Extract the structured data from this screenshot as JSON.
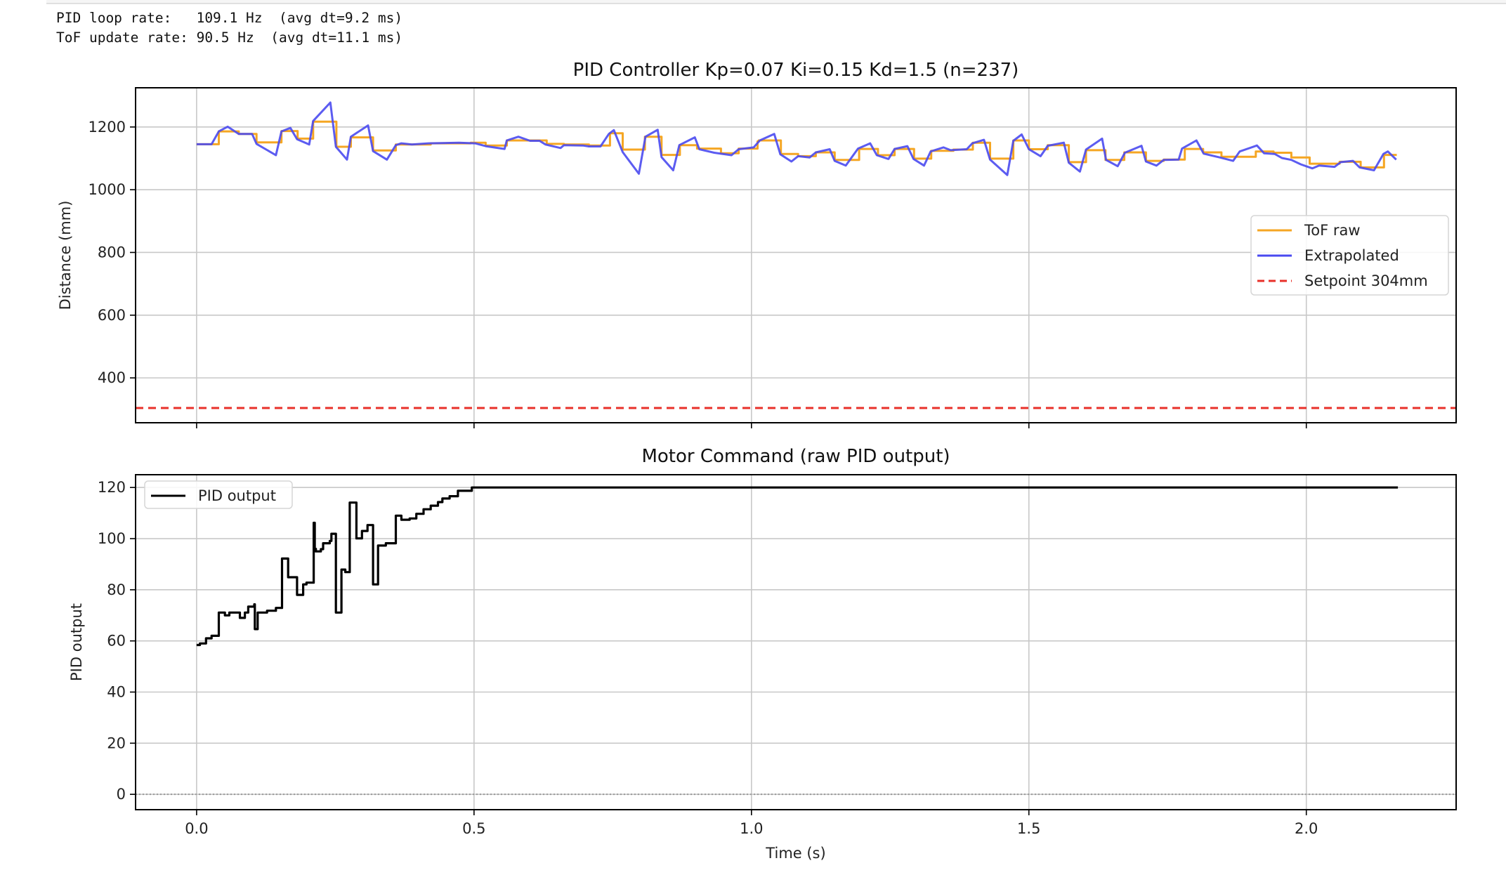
{
  "stdout": {
    "line1": "PID loop rate:   109.1 Hz  (avg dt=9.2 ms)",
    "line2": "ToF update rate: 90.5 Hz  (avg dt=11.1 ms)"
  },
  "colors": {
    "tof_raw": "#f5a623",
    "extrapolated": "#4a4af0",
    "setpoint": "#e8302a",
    "pid_output": "#000000",
    "grid": "#c8c8c8",
    "zero_line": "#999999"
  },
  "chart_data": [
    {
      "type": "line",
      "title": "PID Controller  Kp=0.07  Ki=0.15  Kd=1.5  (n=237)",
      "xlabel": "",
      "ylabel": "Distance (mm)",
      "xlim": [
        -0.11,
        2.27
      ],
      "ylim": [
        257,
        1325
      ],
      "xticks": [
        0.0,
        0.5,
        1.0,
        1.5,
        2.0
      ],
      "xtick_labels": [
        "",
        "",
        "",
        "",
        ""
      ],
      "yticks": [
        400,
        600,
        800,
        1000,
        1200
      ],
      "ytick_labels": [
        "400",
        "600",
        "800",
        "1000",
        "1200"
      ],
      "grid": true,
      "legend_position": "center right",
      "series": [
        {
          "name": "ToF raw",
          "style": "steps-post",
          "color": "#f5a623",
          "x": [
            0.0,
            0.04,
            0.076,
            0.108,
            0.153,
            0.182,
            0.21,
            0.252,
            0.278,
            0.318,
            0.359,
            0.422,
            0.494,
            0.521,
            0.559,
            0.631,
            0.662,
            0.707,
            0.745,
            0.768,
            0.808,
            0.838,
            0.871,
            0.902,
            0.945,
            0.977,
            1.011,
            1.013,
            1.053,
            1.084,
            1.116,
            1.15,
            1.194,
            1.228,
            1.258,
            1.293,
            1.324,
            1.364,
            1.399,
            1.43,
            1.472,
            1.5,
            1.534,
            1.572,
            1.603,
            1.638,
            1.672,
            1.711,
            1.743,
            1.781,
            1.814,
            1.847,
            1.909,
            1.941,
            1.973,
            2.006,
            2.06,
            2.098,
            2.14,
            2.163
          ],
          "y": [
            1145,
            1186,
            1178,
            1151,
            1187,
            1163,
            1217,
            1137,
            1167,
            1125,
            1144,
            1148,
            1150,
            1141,
            1157,
            1146,
            1144,
            1141,
            1180,
            1128,
            1169,
            1111,
            1142,
            1131,
            1116,
            1131,
            1154,
            1157,
            1114,
            1107,
            1119,
            1095,
            1130,
            1110,
            1130,
            1099,
            1124,
            1128,
            1150,
            1099,
            1157,
            1129,
            1142,
            1088,
            1126,
            1095,
            1119,
            1092,
            1096,
            1130,
            1119,
            1105,
            1122,
            1118,
            1103,
            1083,
            1089,
            1071,
            1111,
            1111
          ]
        },
        {
          "name": "Extrapolated",
          "style": "line",
          "color": "#4a4af0",
          "x": [
            0.0,
            0.027,
            0.04,
            0.056,
            0.076,
            0.1,
            0.108,
            0.143,
            0.153,
            0.169,
            0.181,
            0.203,
            0.21,
            0.241,
            0.251,
            0.271,
            0.278,
            0.309,
            0.318,
            0.343,
            0.359,
            0.369,
            0.388,
            0.418,
            0.473,
            0.502,
            0.521,
            0.555,
            0.559,
            0.58,
            0.601,
            0.618,
            0.629,
            0.656,
            0.662,
            0.696,
            0.707,
            0.728,
            0.743,
            0.752,
            0.768,
            0.797,
            0.809,
            0.831,
            0.838,
            0.859,
            0.87,
            0.898,
            0.906,
            0.933,
            0.964,
            0.977,
            1.004,
            1.015,
            1.041,
            1.052,
            1.072,
            1.084,
            1.105,
            1.116,
            1.141,
            1.15,
            1.17,
            1.192,
            1.214,
            1.226,
            1.247,
            1.258,
            1.281,
            1.292,
            1.311,
            1.323,
            1.346,
            1.359,
            1.388,
            1.398,
            1.419,
            1.43,
            1.461,
            1.472,
            1.487,
            1.5,
            1.521,
            1.534,
            1.563,
            1.572,
            1.592,
            1.603,
            1.632,
            1.639,
            1.66,
            1.673,
            1.703,
            1.711,
            1.73,
            1.743,
            1.77,
            1.776,
            1.802,
            1.815,
            1.844,
            1.868,
            1.88,
            1.911,
            1.924,
            1.943,
            1.956,
            1.973,
            1.99,
            2.011,
            2.023,
            2.051,
            2.062,
            2.084,
            2.096,
            2.122,
            2.139,
            2.147,
            2.162
          ],
          "y": [
            1145,
            1145,
            1186,
            1201,
            1178,
            1178,
            1146,
            1110,
            1186,
            1197,
            1161,
            1144,
            1219,
            1278,
            1137,
            1096,
            1169,
            1205,
            1123,
            1096,
            1142,
            1148,
            1144,
            1148,
            1150,
            1148,
            1139,
            1130,
            1157,
            1169,
            1156,
            1156,
            1144,
            1133,
            1142,
            1141,
            1138,
            1138,
            1178,
            1190,
            1120,
            1051,
            1169,
            1191,
            1104,
            1062,
            1142,
            1167,
            1129,
            1118,
            1110,
            1129,
            1135,
            1157,
            1178,
            1113,
            1090,
            1107,
            1103,
            1119,
            1129,
            1092,
            1077,
            1131,
            1148,
            1110,
            1098,
            1130,
            1139,
            1098,
            1077,
            1122,
            1135,
            1126,
            1129,
            1148,
            1159,
            1096,
            1047,
            1156,
            1176,
            1129,
            1107,
            1140,
            1150,
            1086,
            1058,
            1128,
            1163,
            1095,
            1075,
            1118,
            1140,
            1090,
            1077,
            1095,
            1096,
            1131,
            1157,
            1115,
            1103,
            1092,
            1122,
            1141,
            1116,
            1114,
            1101,
            1095,
            1081,
            1068,
            1077,
            1073,
            1088,
            1092,
            1071,
            1062,
            1114,
            1122,
            1096
          ]
        },
        {
          "name": "Setpoint 304mm",
          "style": "hline-dashed",
          "color": "#e8302a",
          "y": 304
        }
      ]
    },
    {
      "type": "line",
      "title": "Motor Command (raw PID output)",
      "xlabel": "Time (s)",
      "ylabel": "PID output",
      "xlim": [
        -0.11,
        2.27
      ],
      "ylim": [
        -6,
        125
      ],
      "xticks": [
        0.0,
        0.5,
        1.0,
        1.5,
        2.0
      ],
      "xtick_labels": [
        "0.0",
        "0.5",
        "1.0",
        "1.5",
        "2.0"
      ],
      "yticks": [
        0,
        20,
        40,
        60,
        80,
        100,
        120
      ],
      "ytick_labels": [
        "0",
        "20",
        "40",
        "60",
        "80",
        "100",
        "120"
      ],
      "grid": true,
      "legend_position": "upper left",
      "series": [
        {
          "name": "PID output",
          "style": "steps-post",
          "color": "#000000",
          "x": [
            0.0,
            0.006,
            0.017,
            0.027,
            0.04,
            0.051,
            0.059,
            0.078,
            0.087,
            0.093,
            0.104,
            0.105,
            0.11,
            0.127,
            0.143,
            0.154,
            0.165,
            0.181,
            0.192,
            0.198,
            0.211,
            0.213,
            0.215,
            0.224,
            0.228,
            0.24,
            0.243,
            0.251,
            0.261,
            0.268,
            0.276,
            0.288,
            0.298,
            0.308,
            0.318,
            0.327,
            0.341,
            0.359,
            0.369,
            0.384,
            0.396,
            0.409,
            0.422,
            0.435,
            0.443,
            0.456,
            0.471,
            0.496,
            2.165
          ],
          "y": [
            58.4,
            59,
            61,
            62,
            71.1,
            70,
            71.1,
            69,
            71.1,
            73.4,
            74.3,
            64.6,
            71.1,
            71.8,
            72.9,
            92.2,
            84.9,
            78,
            82.1,
            82.8,
            106.2,
            96,
            95,
            95.9,
            98.2,
            99.1,
            101.9,
            71.1,
            87.9,
            86.9,
            114.1,
            100.1,
            103,
            105.3,
            82.1,
            97.3,
            98.2,
            109,
            107.4,
            107.9,
            109.7,
            111.5,
            112.9,
            114.3,
            115.7,
            116.6,
            118.7,
            120,
            120
          ]
        },
        {
          "name": "zero",
          "style": "hline-dotted",
          "color": "#999999",
          "y": 0
        }
      ]
    }
  ]
}
